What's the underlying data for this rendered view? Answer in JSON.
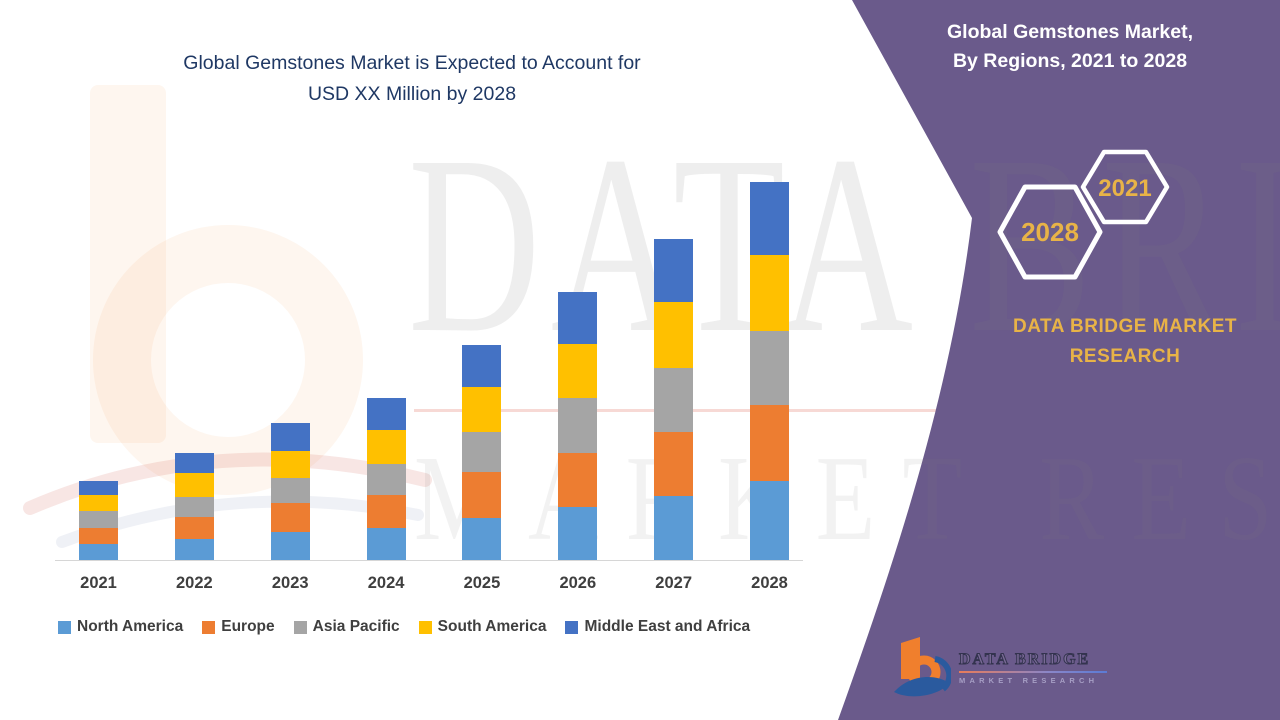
{
  "title": {
    "line1": "Global Gemstones Market is Expected to Account for",
    "line2": "USD XX Million by 2028"
  },
  "side_panel": {
    "heading_line1": "Global Gemstones Market,",
    "heading_line2": "By Regions, 2021 to 2028",
    "hexagon_front_label": "2028",
    "hexagon_back_label": "2021",
    "brand_line1": "DATA BRIDGE MARKET",
    "brand_line2": "RESEARCH",
    "colors": {
      "panel": "#6a5a8b",
      "gold": "#e8b347"
    }
  },
  "watermark": {
    "text_top": "DATA BRIDGE",
    "text_bottom": "MARKET RESEARCH"
  },
  "logo": {
    "name": "DATA BRIDGE",
    "sub": "MARKET RESEARCH"
  },
  "chart_data": {
    "type": "bar",
    "stacked": true,
    "title": "Global Gemstones Market is Expected to Account for USD XX Million by 2028",
    "xlabel": "",
    "ylabel": "",
    "grid": false,
    "y_axis_labels": false,
    "legend_position": "bottom",
    "value_note": "relative units (no numeric axis shown in source)",
    "categories": [
      "2021",
      "2022",
      "2023",
      "2024",
      "2025",
      "2026",
      "2027",
      "2028"
    ],
    "series": [
      {
        "name": "North America",
        "color": "#5b9bd5",
        "values": [
          16,
          21,
          28,
          32,
          42,
          53,
          64,
          79
        ]
      },
      {
        "name": "Europe",
        "color": "#ed7d31",
        "values": [
          16,
          22,
          29,
          33,
          46,
          54,
          64,
          76
        ]
      },
      {
        "name": "Asia Pacific",
        "color": "#a5a5a5",
        "values": [
          17,
          20,
          25,
          31,
          40,
          55,
          64,
          74
        ]
      },
      {
        "name": "South America",
        "color": "#ffc000",
        "values": [
          16,
          24,
          27,
          34,
          45,
          54,
          66,
          76
        ]
      },
      {
        "name": "Middle East and Africa",
        "color": "#4472c4",
        "values": [
          14,
          20,
          28,
          32,
          42,
          52,
          63,
          73
        ]
      }
    ]
  }
}
